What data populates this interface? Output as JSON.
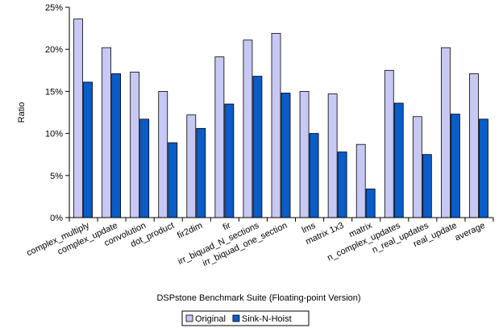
{
  "chart_data": {
    "type": "bar",
    "title": "",
    "xlabel": "DSPstone Benchmark Suite (Floating-point Version)",
    "ylabel": "Ratio",
    "ylim": [
      0,
      25
    ],
    "yticks": [
      0,
      5,
      10,
      15,
      20,
      25
    ],
    "ytick_suffix": "%",
    "grid": false,
    "legend_position": "bottom-center",
    "categories": [
      "complex_multiply",
      "complex_update",
      "convolution",
      "dot_product",
      "fir2dim",
      "fir",
      "irr_biquad_N_sections",
      "irr_biquad_one_section",
      "lms",
      "matrix 1x3",
      "matrix",
      "n_complex_updates",
      "n_real_updates",
      "real_update",
      "average"
    ],
    "series": [
      {
        "name": "Original",
        "color": "#c8c8f5",
        "values": [
          23.6,
          20.2,
          17.3,
          15.0,
          12.2,
          19.1,
          21.1,
          21.9,
          15.0,
          14.7,
          8.7,
          17.5,
          12.0,
          20.2,
          17.1
        ]
      },
      {
        "name": "Sink-N-Hoist",
        "color": "#0a5cc8",
        "values": [
          16.1,
          17.1,
          11.7,
          8.9,
          10.6,
          13.5,
          16.8,
          14.8,
          10.0,
          7.8,
          3.4,
          13.6,
          7.5,
          12.3,
          11.7
        ]
      }
    ]
  }
}
